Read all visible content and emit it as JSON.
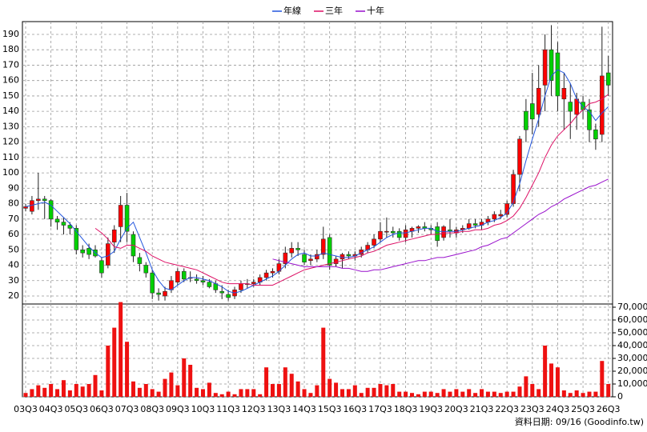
{
  "chart_data": {
    "type": "candlestick",
    "categories": [
      "03Q3",
      null,
      null,
      null,
      "04Q3",
      null,
      null,
      null,
      "05Q3",
      null,
      null,
      null,
      "06Q3",
      null,
      null,
      null,
      "07Q3",
      null,
      null,
      null,
      "08Q3",
      null,
      null,
      null,
      "09Q3",
      null,
      null,
      null,
      "10Q3",
      null,
      null,
      null,
      "11Q3",
      null,
      null,
      null,
      "12Q3",
      null,
      null,
      null,
      "13Q3",
      null,
      null,
      null,
      "14Q3",
      null,
      null,
      null,
      "15Q3",
      null,
      null,
      null,
      "16Q3",
      null,
      null,
      null,
      "17Q3",
      null,
      null,
      null,
      "18Q3",
      null,
      null,
      null,
      "19Q3",
      null,
      null,
      null,
      "20Q3",
      null,
      null,
      null,
      "21Q3",
      null,
      null,
      null,
      "22Q3",
      null,
      null,
      null,
      "23Q3",
      null,
      null,
      null,
      "24Q3",
      null,
      null,
      null,
      "25Q3",
      null,
      null,
      null,
      "26Q3"
    ],
    "open": [
      77,
      75,
      82,
      83,
      82,
      70,
      68,
      66,
      64,
      50,
      51,
      50,
      43,
      40,
      55,
      65,
      79,
      60,
      45,
      40,
      35,
      22,
      20,
      24,
      29,
      36,
      32,
      31,
      30,
      29,
      28,
      23,
      21,
      20,
      24,
      28,
      28,
      29,
      32,
      35,
      36,
      41,
      48,
      51,
      47,
      43,
      44,
      47,
      58,
      41,
      44,
      47,
      46,
      47,
      50,
      53,
      57,
      62,
      62,
      62,
      58,
      62,
      64,
      65,
      64,
      65,
      58,
      63,
      61,
      63,
      64,
      67,
      66,
      68,
      70,
      72,
      73,
      80,
      99,
      140,
      145,
      138,
      157,
      180,
      178,
      148,
      146,
      138,
      146,
      141,
      128,
      125,
      165
    ],
    "high": [
      80,
      85,
      100,
      85,
      83,
      72,
      71,
      68,
      66,
      53,
      54,
      53,
      45,
      58,
      66,
      85,
      87,
      62,
      48,
      42,
      37,
      25,
      26,
      33,
      38,
      38,
      36,
      34,
      33,
      31,
      30,
      27,
      24,
      26,
      30,
      31,
      31,
      34,
      37,
      38,
      44,
      52,
      55,
      55,
      50,
      47,
      50,
      65,
      60,
      46,
      48,
      49,
      49,
      52,
      55,
      60,
      68,
      71,
      65,
      64,
      66,
      65,
      66,
      68,
      66,
      68,
      66,
      70,
      65,
      66,
      70,
      70,
      70,
      72,
      75,
      76,
      82,
      102,
      124,
      148,
      165,
      170,
      190,
      196,
      185,
      165,
      158,
      152,
      150,
      148,
      132,
      195,
      176
    ],
    "low": [
      75,
      73,
      76,
      70,
      65,
      63,
      60,
      60,
      47,
      45,
      44,
      45,
      32,
      38,
      48,
      55,
      55,
      42,
      36,
      32,
      18,
      17,
      17,
      22,
      27,
      29,
      29,
      28,
      27,
      25,
      22,
      18,
      17,
      18,
      22,
      25,
      26,
      27,
      30,
      32,
      34,
      38,
      45,
      46,
      40,
      40,
      42,
      44,
      37,
      39,
      38,
      44,
      43,
      45,
      48,
      51,
      55,
      58,
      58,
      56,
      55,
      58,
      61,
      62,
      60,
      52,
      56,
      58,
      58,
      61,
      63,
      64,
      63,
      66,
      68,
      70,
      71,
      78,
      88,
      120,
      125,
      130,
      140,
      150,
      140,
      128,
      122,
      128,
      135,
      120,
      115,
      120,
      150
    ],
    "close": [
      78,
      82,
      83,
      82,
      70,
      68,
      66,
      64,
      50,
      48,
      47,
      46,
      35,
      54,
      63,
      79,
      62,
      46,
      41,
      35,
      22,
      21,
      23,
      30,
      36,
      31,
      32,
      30,
      29,
      26,
      24,
      22,
      19,
      24,
      28,
      28,
      29,
      32,
      35,
      36,
      41,
      48,
      51,
      50,
      42,
      44,
      47,
      57,
      40,
      44,
      47,
      46,
      47,
      50,
      53,
      57,
      62,
      62,
      61,
      58,
      63,
      64,
      65,
      64,
      63,
      56,
      65,
      62,
      63,
      64,
      67,
      66,
      68,
      70,
      73,
      73,
      80,
      99,
      122,
      128,
      135,
      155,
      180,
      160,
      150,
      155,
      140,
      148,
      141,
      128,
      122,
      163,
      157
    ],
    "up_color": "#ff0000",
    "down_color": "#00d000",
    "series": [
      {
        "name": "年線",
        "color": "#2255dd",
        "values": [
          78,
          79,
          80,
          81,
          79,
          75,
          71,
          67,
          62,
          57,
          52,
          48,
          45,
          46,
          49,
          57,
          64,
          68,
          58,
          48,
          37,
          30,
          25,
          24,
          27,
          30,
          32,
          32,
          31,
          30,
          28,
          26,
          23,
          22,
          23,
          25,
          27,
          29,
          31,
          33,
          36,
          40,
          44,
          47,
          48,
          46,
          46,
          48,
          47,
          46,
          45,
          45,
          46,
          48,
          50,
          52,
          55,
          58,
          60,
          61,
          61,
          62,
          63,
          64,
          64,
          62,
          62,
          62,
          62,
          63,
          64,
          65,
          66,
          68,
          69,
          71,
          74,
          81,
          93,
          108,
          122,
          135,
          150,
          163,
          167,
          165,
          158,
          148,
          143,
          140,
          134,
          139,
          143
        ]
      },
      {
        "name": "三年",
        "color": "#dd1166",
        "values": [
          null,
          null,
          null,
          null,
          null,
          null,
          null,
          null,
          null,
          null,
          null,
          64,
          61,
          57,
          52,
          51,
          53,
          53,
          51,
          49,
          46,
          44,
          42,
          41,
          40,
          39,
          38,
          37,
          35,
          33,
          31,
          29,
          28,
          28,
          28,
          28,
          27,
          27,
          27,
          27,
          29,
          31,
          33,
          35,
          37,
          38,
          39,
          40,
          41,
          42,
          43,
          44,
          45,
          46,
          48,
          49,
          51,
          53,
          54,
          55,
          56,
          57,
          58,
          59,
          60,
          60,
          61,
          61,
          61,
          62,
          62,
          63,
          63,
          64,
          66,
          67,
          69,
          72,
          77,
          84,
          92,
          100,
          110,
          118,
          124,
          128,
          132,
          137,
          141,
          145,
          146,
          148,
          151
        ]
      },
      {
        "name": "十年",
        "color": "#9911cc",
        "values": [
          null,
          null,
          null,
          null,
          null,
          null,
          null,
          null,
          null,
          null,
          null,
          null,
          null,
          null,
          null,
          null,
          null,
          null,
          null,
          null,
          null,
          null,
          null,
          null,
          null,
          null,
          null,
          null,
          null,
          null,
          null,
          null,
          null,
          null,
          null,
          null,
          null,
          null,
          null,
          44,
          43,
          42,
          41,
          40,
          39,
          39,
          39,
          39,
          39,
          39,
          38,
          38,
          37,
          36,
          36,
          37,
          37,
          38,
          39,
          40,
          41,
          42,
          43,
          43,
          44,
          45,
          45,
          46,
          47,
          48,
          49,
          50,
          52,
          53,
          55,
          57,
          58,
          61,
          64,
          67,
          70,
          73,
          75,
          78,
          80,
          83,
          85,
          87,
          89,
          91,
          92,
          94,
          96
        ]
      }
    ],
    "ylim": [
      14.8,
      198.3
    ],
    "yticks": [
      20,
      30,
      40,
      50,
      60,
      70,
      80,
      90,
      100,
      110,
      120,
      130,
      140,
      150,
      160,
      170,
      180,
      190
    ],
    "volume": {
      "color": "#ee1111",
      "ylim": [
        0,
        72500
      ],
      "values": [
        3000,
        6000,
        9000,
        7000,
        10000,
        6000,
        13000,
        5000,
        10000,
        8000,
        10000,
        17000,
        5000,
        40000,
        54000,
        74000,
        43000,
        12000,
        7000,
        10000,
        6000,
        4000,
        14000,
        19000,
        9000,
        30000,
        25000,
        7000,
        6000,
        11000,
        3000,
        2000,
        4000,
        2000,
        6000,
        6000,
        6000,
        2000,
        23000,
        10000,
        10000,
        23000,
        18000,
        12000,
        6000,
        3000,
        9000,
        54000,
        14000,
        11000,
        6000,
        6000,
        9000,
        3000,
        7000,
        7000,
        10000,
        9000,
        10000,
        4000,
        4000,
        3000,
        2000,
        4000,
        4000,
        3000,
        6000,
        4000,
        6000,
        4000,
        6000,
        3000,
        6000,
        4000,
        4000,
        3000,
        4000,
        4000,
        8000,
        16000,
        10000,
        6000,
        40000,
        26000,
        23000,
        5000,
        3000,
        5000,
        3000,
        4000,
        4000,
        28000,
        10000
      ],
      "yticks": [
        0,
        {
          "value": 10000,
          "label": "10,000"
        },
        {
          "value": 20000,
          "label": "20,000"
        },
        {
          "value": 30000,
          "label": "30,000"
        },
        {
          "value": 40000,
          "label": "40,000"
        },
        {
          "value": 50000,
          "label": "50,000"
        },
        {
          "value": 60000,
          "label": "60,000"
        },
        {
          "value": 70000,
          "label": "70,000"
        }
      ]
    },
    "grid": true,
    "legend": "top",
    "source": "資料日期: 09/16  (Goodinfo.tw)"
  }
}
